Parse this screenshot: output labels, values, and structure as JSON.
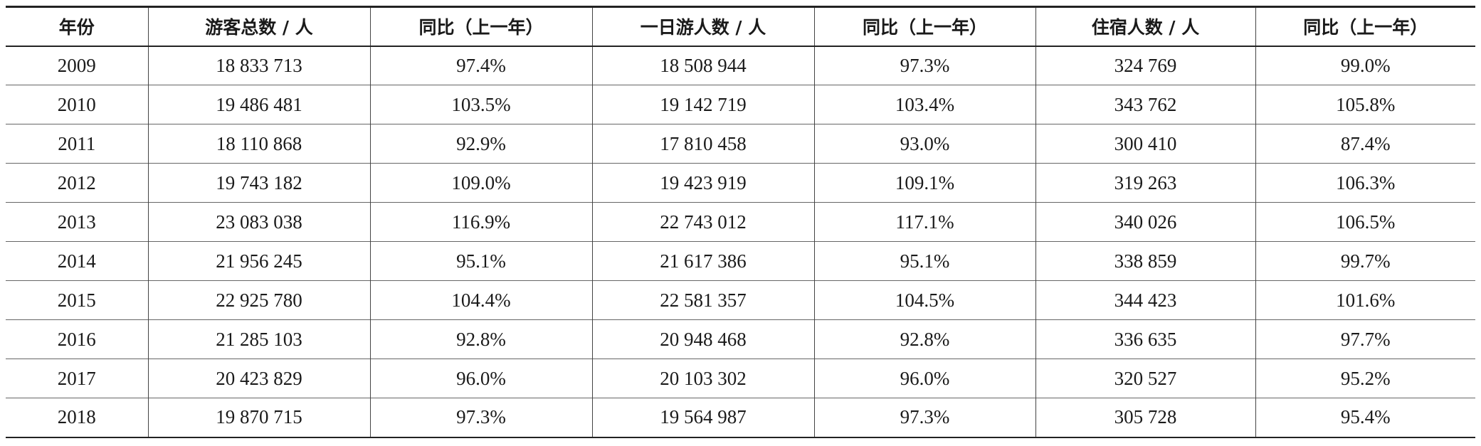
{
  "table": {
    "headers": [
      "年份",
      "游客总数 / 人",
      "同比（上一年）",
      "一日游人数 / 人",
      "同比（上一年）",
      "住宿人数 / 人",
      "同比（上一年）"
    ],
    "rows": [
      [
        "2009",
        "18 833 713",
        "97.4%",
        "18 508 944",
        "97.3%",
        "324 769",
        "99.0%"
      ],
      [
        "2010",
        "19 486 481",
        "103.5%",
        "19 142 719",
        "103.4%",
        "343 762",
        "105.8%"
      ],
      [
        "2011",
        "18 110 868",
        "92.9%",
        "17 810 458",
        "93.0%",
        "300 410",
        "87.4%"
      ],
      [
        "2012",
        "19 743 182",
        "109.0%",
        "19 423 919",
        "109.1%",
        "319 263",
        "106.3%"
      ],
      [
        "2013",
        "23 083 038",
        "116.9%",
        "22 743 012",
        "117.1%",
        "340 026",
        "106.5%"
      ],
      [
        "2014",
        "21 956 245",
        "95.1%",
        "21 617 386",
        "95.1%",
        "338 859",
        "99.7%"
      ],
      [
        "2015",
        "22 925 780",
        "104.4%",
        "22 581 357",
        "104.5%",
        "344 423",
        "101.6%"
      ],
      [
        "2016",
        "21 285 103",
        "92.8%",
        "20 948 468",
        "92.8%",
        "336 635",
        "97.7%"
      ],
      [
        "2017",
        "20 423 829",
        "96.0%",
        "20 103 302",
        "96.0%",
        "320 527",
        "95.2%"
      ],
      [
        "2018",
        "19 870 715",
        "97.3%",
        "19 564 987",
        "97.3%",
        "305 728",
        "95.4%"
      ]
    ]
  }
}
